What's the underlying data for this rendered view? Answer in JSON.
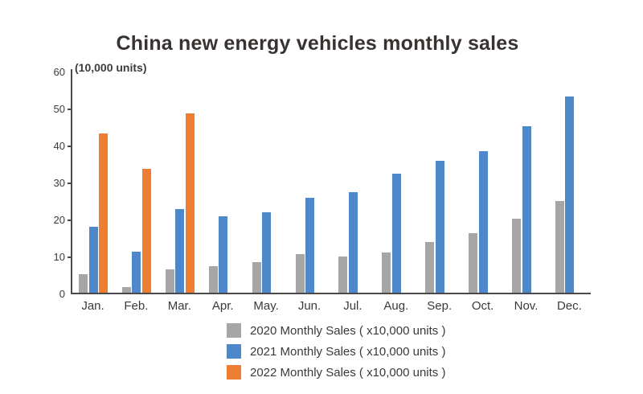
{
  "page": {
    "background": "#ffffff"
  },
  "chart_data": {
    "type": "bar",
    "title": "China new energy vehicles monthly sales",
    "axis_unit_label": "(10,000 units)",
    "xlabel": "",
    "ylabel": "(10,000 units)",
    "ylim": [
      0,
      60
    ],
    "yticks": [
      0,
      10,
      20,
      30,
      40,
      50,
      60
    ],
    "grid": false,
    "legend_position": "bottom-center",
    "categories": [
      "Jan.",
      "Feb.",
      "Mar.",
      "Apr.",
      "May.",
      "Jun.",
      "Jul.",
      "Aug.",
      "Sep.",
      "Oct.",
      "Nov.",
      "Dec."
    ],
    "series": [
      {
        "name": "2020 Monthly Sales ( x10,000 units )",
        "color": "#a6a6a6",
        "values": [
          5.0,
          1.5,
          6.4,
          7.2,
          8.2,
          10.4,
          9.8,
          10.9,
          13.8,
          16.0,
          20.0,
          24.8
        ]
      },
      {
        "name": "2021 Monthly Sales ( x10,000 units )",
        "color": "#4f87cb",
        "values": [
          17.9,
          11.0,
          22.6,
          20.6,
          21.7,
          25.6,
          27.1,
          32.1,
          35.7,
          38.3,
          45.0,
          53.1
        ]
      },
      {
        "name": "2022 Monthly Sales ( x10,000 units )",
        "color": "#ed7d31",
        "values": [
          43.1,
          33.4,
          48.4,
          null,
          null,
          null,
          null,
          null,
          null,
          null,
          null,
          null
        ]
      }
    ],
    "axis_color": "#4a4a4a",
    "text_color": "#3a3a3a"
  }
}
